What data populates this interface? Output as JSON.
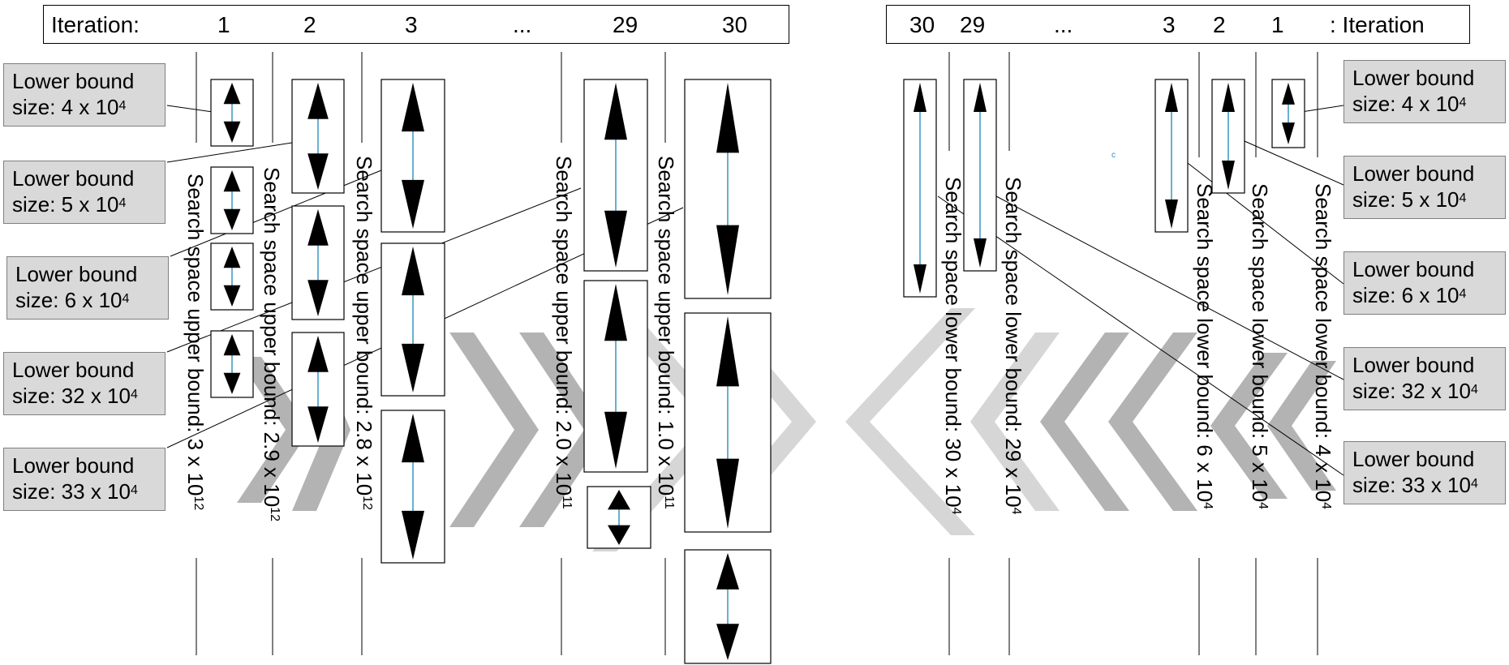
{
  "header_left": {
    "label": "Iteration:",
    "iterations": [
      "1",
      "2",
      "3",
      "...",
      "29",
      "30"
    ]
  },
  "header_right": {
    "iterations": [
      "30",
      "29",
      "...",
      "3",
      "2",
      "1"
    ],
    "label": ": Iteration"
  },
  "left_boxes": [
    {
      "line1": "Lower bound",
      "line2": "size:  4 x 10",
      "exp": "4"
    },
    {
      "line1": "Lower bound",
      "line2": "size:  5 x 10",
      "exp": "4"
    },
    {
      "line1": "Lower bound",
      "line2": "size:  6 x 10",
      "exp": "4"
    },
    {
      "line1": "Lower bound",
      "line2": "size:  32 x 10",
      "exp": "4"
    },
    {
      "line1": "Lower bound",
      "line2": "size:  33 x 10",
      "exp": "4"
    }
  ],
  "right_boxes": [
    {
      "line1": "Lower bound",
      "line2": "size:  4 x 10",
      "exp": "4"
    },
    {
      "line1": "Lower bound",
      "line2": "size:  5 x 10",
      "exp": "4"
    },
    {
      "line1": "Lower bound",
      "line2": "size:  6 x 10",
      "exp": "4"
    },
    {
      "line1": "Lower bound",
      "line2": "size:  32 x 10",
      "exp": "4"
    },
    {
      "line1": "Lower bound",
      "line2": "size:  33 x 10",
      "exp": "4"
    }
  ],
  "upper_labels": [
    {
      "text": "Search space upper bound: 3 x 10",
      "exp": "12"
    },
    {
      "text": "Search space upper bound: 2.9 x 10",
      "exp": "12"
    },
    {
      "text": "Search space upper bound: 2.8 x 10",
      "exp": "12"
    },
    {
      "text": "Search space upper bound: 2.0 x 10",
      "exp": "11"
    },
    {
      "text": "Search space upper bound: 1.0 x 10",
      "exp": "11"
    }
  ],
  "lower_labels": [
    {
      "text": "Search space lower bound: 30 x 10",
      "exp": "4"
    },
    {
      "text": "Search space lower bound: 29 x 10",
      "exp": "4"
    },
    {
      "text": "Search space lower bound: 6 x 10",
      "exp": "4"
    },
    {
      "text": "Search space lower bound: 5 x 10",
      "exp": "4"
    },
    {
      "text": "Search space lower bound: 4 x 10",
      "exp": "4"
    }
  ],
  "stray_mark": "c",
  "colors": {
    "arrow_fill": "#000000",
    "arrow_shaft": "#2a8fbd",
    "box_fill": "#d9d9d9",
    "chevron_dark": "#b3b3b3",
    "chevron_light": "#d6d6d6"
  }
}
